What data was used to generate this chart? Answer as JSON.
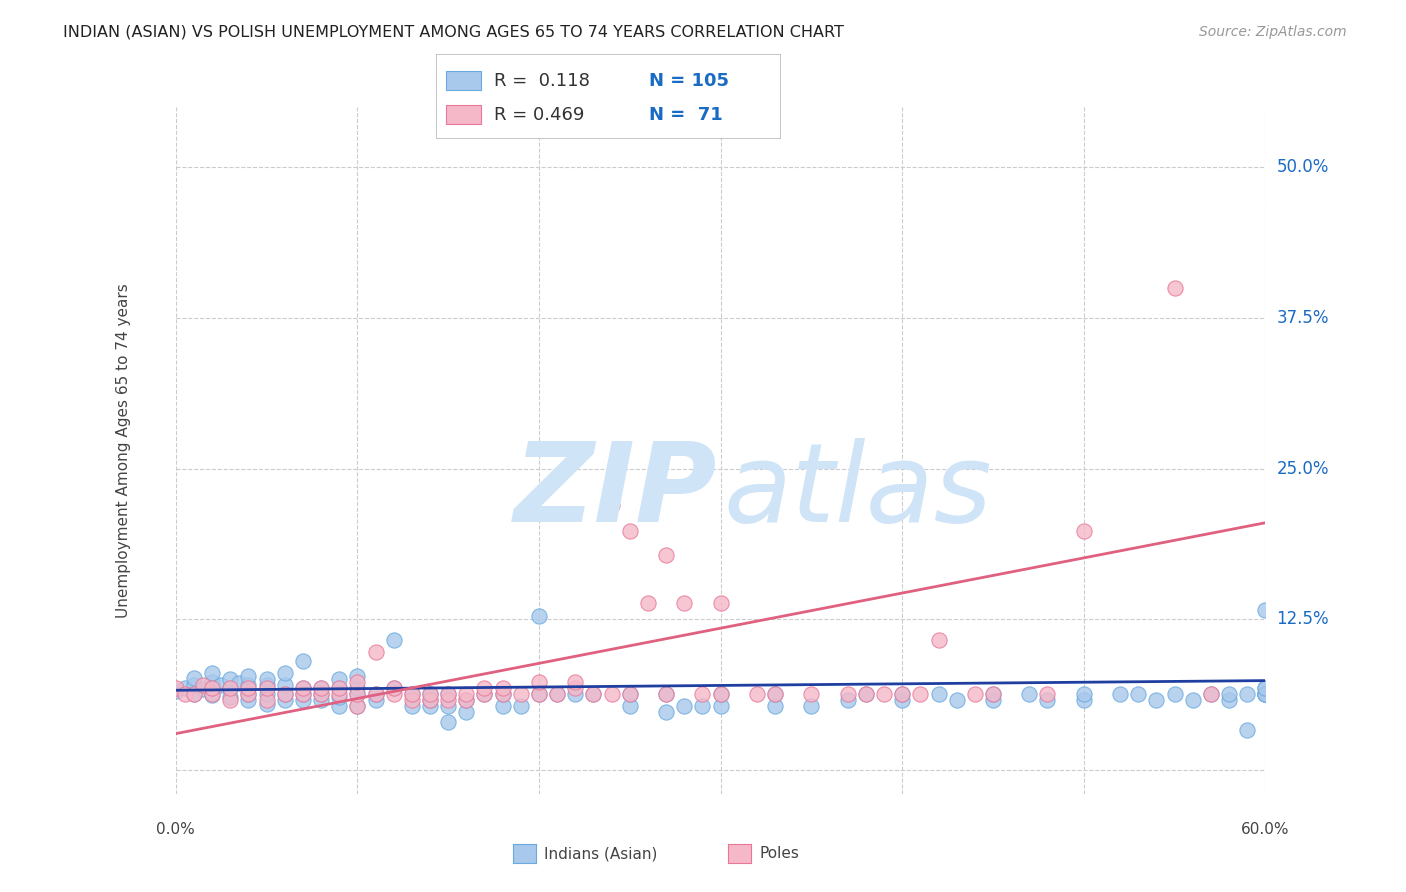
{
  "title": "INDIAN (ASIAN) VS POLISH UNEMPLOYMENT AMONG AGES 65 TO 74 YEARS CORRELATION CHART",
  "source": "Source: ZipAtlas.com",
  "ylabel": "Unemployment Among Ages 65 to 74 years",
  "xlim": [
    0.0,
    0.6
  ],
  "ylim": [
    -0.02,
    0.55
  ],
  "xticks": [
    0.0,
    0.1,
    0.2,
    0.3,
    0.4,
    0.5,
    0.6
  ],
  "ytick_positions": [
    0.0,
    0.125,
    0.25,
    0.375,
    0.5
  ],
  "ytick_labels": [
    "",
    "12.5%",
    "25.0%",
    "37.5%",
    "50.0%"
  ],
  "indian_color": "#A8C8EC",
  "indian_edge_color": "#6AAADE",
  "polish_color": "#F5B8C8",
  "polish_edge_color": "#E87898",
  "indian_line_color": "#1E3FA0",
  "polish_line_color": "#E06080",
  "legend_value_color": "#1A6BC4",
  "legend_label_color": "#333333",
  "watermark_color": "#D0E4F8",
  "grid_color": "#CCCCCC",
  "background_color": "#FFFFFF",
  "indian_scatter_x": [
    0.0,
    0.005,
    0.01,
    0.01,
    0.01,
    0.015,
    0.02,
    0.02,
    0.02,
    0.02,
    0.025,
    0.03,
    0.03,
    0.03,
    0.035,
    0.04,
    0.04,
    0.04,
    0.04,
    0.05,
    0.05,
    0.05,
    0.05,
    0.06,
    0.06,
    0.06,
    0.06,
    0.07,
    0.07,
    0.07,
    0.07,
    0.08,
    0.08,
    0.08,
    0.09,
    0.09,
    0.09,
    0.09,
    0.1,
    0.1,
    0.1,
    0.1,
    0.11,
    0.11,
    0.12,
    0.12,
    0.13,
    0.13,
    0.14,
    0.14,
    0.14,
    0.15,
    0.15,
    0.15,
    0.16,
    0.16,
    0.17,
    0.18,
    0.18,
    0.19,
    0.2,
    0.2,
    0.21,
    0.22,
    0.23,
    0.25,
    0.25,
    0.27,
    0.27,
    0.28,
    0.29,
    0.3,
    0.3,
    0.33,
    0.33,
    0.35,
    0.37,
    0.38,
    0.4,
    0.4,
    0.42,
    0.43,
    0.45,
    0.45,
    0.47,
    0.48,
    0.5,
    0.5,
    0.52,
    0.53,
    0.54,
    0.55,
    0.56,
    0.57,
    0.58,
    0.58,
    0.59,
    0.59,
    0.6,
    0.6,
    0.6,
    0.6,
    0.6,
    0.6,
    0.6
  ],
  "indian_scatter_y": [
    0.065,
    0.068,
    0.063,
    0.07,
    0.076,
    0.067,
    0.062,
    0.068,
    0.073,
    0.08,
    0.07,
    0.06,
    0.068,
    0.075,
    0.072,
    0.058,
    0.063,
    0.07,
    0.078,
    0.055,
    0.063,
    0.07,
    0.075,
    0.058,
    0.063,
    0.07,
    0.08,
    0.058,
    0.063,
    0.068,
    0.09,
    0.058,
    0.063,
    0.068,
    0.053,
    0.06,
    0.068,
    0.075,
    0.053,
    0.063,
    0.068,
    0.078,
    0.058,
    0.063,
    0.068,
    0.108,
    0.053,
    0.063,
    0.053,
    0.058,
    0.063,
    0.04,
    0.053,
    0.063,
    0.048,
    0.058,
    0.063,
    0.053,
    0.063,
    0.053,
    0.063,
    0.128,
    0.063,
    0.063,
    0.063,
    0.053,
    0.063,
    0.048,
    0.063,
    0.053,
    0.053,
    0.053,
    0.063,
    0.053,
    0.063,
    0.053,
    0.058,
    0.063,
    0.058,
    0.063,
    0.063,
    0.058,
    0.058,
    0.063,
    0.063,
    0.058,
    0.058,
    0.063,
    0.063,
    0.063,
    0.058,
    0.063,
    0.058,
    0.063,
    0.058,
    0.063,
    0.033,
    0.063,
    0.063,
    0.068,
    0.063,
    0.063,
    0.063,
    0.068,
    0.133
  ],
  "polish_scatter_x": [
    0.0,
    0.005,
    0.01,
    0.015,
    0.02,
    0.02,
    0.03,
    0.03,
    0.04,
    0.04,
    0.05,
    0.05,
    0.06,
    0.07,
    0.07,
    0.08,
    0.08,
    0.09,
    0.09,
    0.1,
    0.1,
    0.1,
    0.11,
    0.11,
    0.12,
    0.12,
    0.13,
    0.13,
    0.14,
    0.14,
    0.15,
    0.15,
    0.16,
    0.16,
    0.17,
    0.17,
    0.18,
    0.18,
    0.19,
    0.2,
    0.2,
    0.21,
    0.22,
    0.22,
    0.23,
    0.24,
    0.24,
    0.25,
    0.25,
    0.26,
    0.27,
    0.27,
    0.28,
    0.29,
    0.3,
    0.3,
    0.32,
    0.33,
    0.35,
    0.37,
    0.38,
    0.39,
    0.4,
    0.41,
    0.42,
    0.44,
    0.45,
    0.48,
    0.5,
    0.55,
    0.57
  ],
  "polish_scatter_y": [
    0.068,
    0.063,
    0.063,
    0.07,
    0.063,
    0.068,
    0.058,
    0.068,
    0.063,
    0.068,
    0.058,
    0.068,
    0.063,
    0.063,
    0.068,
    0.063,
    0.068,
    0.063,
    0.068,
    0.053,
    0.063,
    0.073,
    0.063,
    0.098,
    0.063,
    0.068,
    0.058,
    0.063,
    0.058,
    0.063,
    0.058,
    0.063,
    0.058,
    0.063,
    0.063,
    0.068,
    0.063,
    0.068,
    0.063,
    0.063,
    0.073,
    0.063,
    0.068,
    0.073,
    0.063,
    0.063,
    0.22,
    0.063,
    0.198,
    0.138,
    0.063,
    0.178,
    0.138,
    0.063,
    0.063,
    0.138,
    0.063,
    0.063,
    0.063,
    0.063,
    0.063,
    0.063,
    0.063,
    0.063,
    0.108,
    0.063,
    0.063,
    0.063,
    0.198,
    0.4,
    0.063
  ],
  "indian_line_x": [
    0.0,
    0.6
  ],
  "indian_line_y": [
    0.066,
    0.074
  ],
  "polish_line_x": [
    0.0,
    0.6
  ],
  "polish_line_y": [
    0.03,
    0.205
  ]
}
